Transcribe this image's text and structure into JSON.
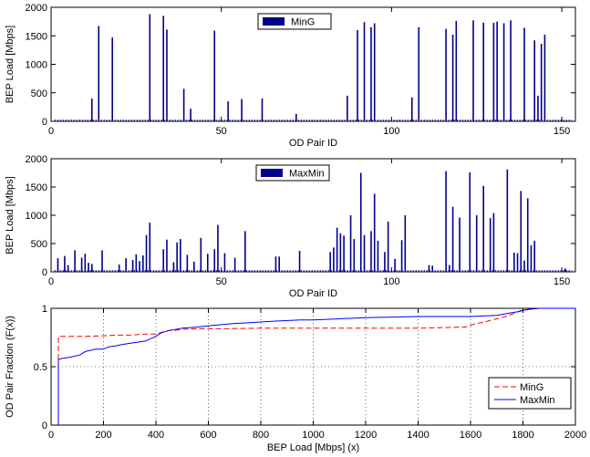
{
  "chart_data": [
    {
      "type": "bar",
      "xlabel": "OD Pair ID",
      "ylabel": "BEP Load [Mbps]",
      "xlim": [
        0,
        154
      ],
      "ylim": [
        0,
        2000
      ],
      "xticks": [
        0,
        50,
        100,
        150
      ],
      "yticks": [
        0,
        500,
        1000,
        1500,
        2000
      ],
      "legend": {
        "position": "top-center",
        "labels": [
          "MinG"
        ]
      },
      "color": "#00008b",
      "series": [
        {
          "name": "MinG",
          "bars": [
            [
              12,
              400
            ],
            [
              14,
              1670
            ],
            [
              18,
              1470
            ],
            [
              29,
              1880
            ],
            [
              33,
              1850
            ],
            [
              34,
              1610
            ],
            [
              39,
              570
            ],
            [
              41,
              220
            ],
            [
              48,
              1590
            ],
            [
              52,
              350
            ],
            [
              56,
              390
            ],
            [
              62,
              400
            ],
            [
              72,
              130
            ],
            [
              87,
              450
            ],
            [
              90,
              1600
            ],
            [
              92,
              1740
            ],
            [
              94,
              1650
            ],
            [
              95,
              1720
            ],
            [
              106,
              420
            ],
            [
              108,
              1650
            ],
            [
              116,
              1620
            ],
            [
              118,
              1520
            ],
            [
              119,
              1760
            ],
            [
              124,
              1770
            ],
            [
              127,
              1730
            ],
            [
              130,
              1730
            ],
            [
              131,
              1750
            ],
            [
              133,
              1720
            ],
            [
              135,
              1770
            ],
            [
              139,
              1640
            ],
            [
              142,
              1420
            ],
            [
              143,
              450
            ],
            [
              144,
              1360
            ],
            [
              145,
              1520
            ]
          ]
        }
      ]
    },
    {
      "type": "bar",
      "xlabel": "OD Pair ID",
      "ylabel": "BEP Load [Mbps]",
      "xlim": [
        0,
        154
      ],
      "ylim": [
        0,
        2000
      ],
      "xticks": [
        0,
        50,
        100,
        150
      ],
      "yticks": [
        0,
        500,
        1000,
        1500,
        2000
      ],
      "legend": {
        "position": "top-center",
        "labels": [
          "MaxMin"
        ]
      },
      "color": "#00008b",
      "series": [
        {
          "name": "MaxMin",
          "bars": [
            [
              2,
              240
            ],
            [
              4,
              280
            ],
            [
              5,
              120
            ],
            [
              7,
              380
            ],
            [
              9,
              250
            ],
            [
              10,
              320
            ],
            [
              11,
              160
            ],
            [
              12,
              140
            ],
            [
              15,
              380
            ],
            [
              20,
              130
            ],
            [
              22,
              240
            ],
            [
              24,
              210
            ],
            [
              25,
              310
            ],
            [
              26,
              190
            ],
            [
              27,
              290
            ],
            [
              28,
              650
            ],
            [
              29,
              870
            ],
            [
              33,
              400
            ],
            [
              34,
              570
            ],
            [
              36,
              170
            ],
            [
              37,
              520
            ],
            [
              38,
              580
            ],
            [
              40,
              300
            ],
            [
              42,
              180
            ],
            [
              44,
              600
            ],
            [
              46,
              320
            ],
            [
              48,
              400
            ],
            [
              49,
              830
            ],
            [
              51,
              330
            ],
            [
              54,
              250
            ],
            [
              57,
              720
            ],
            [
              66,
              270
            ],
            [
              67,
              270
            ],
            [
              73,
              370
            ],
            [
              82,
              350
            ],
            [
              83,
              430
            ],
            [
              84,
              780
            ],
            [
              85,
              680
            ],
            [
              86,
              640
            ],
            [
              88,
              1000
            ],
            [
              89,
              580
            ],
            [
              91,
              1750
            ],
            [
              92,
              650
            ],
            [
              94,
              720
            ],
            [
              95,
              1380
            ],
            [
              96,
              550
            ],
            [
              98,
              350
            ],
            [
              99,
              890
            ],
            [
              101,
              230
            ],
            [
              103,
              560
            ],
            [
              104,
              1000
            ],
            [
              111,
              120
            ],
            [
              112,
              110
            ],
            [
              116,
              1780
            ],
            [
              117,
              120
            ],
            [
              118,
              1150
            ],
            [
              120,
              960
            ],
            [
              123,
              1760
            ],
            [
              125,
              1000
            ],
            [
              127,
              1520
            ],
            [
              129,
              950
            ],
            [
              130,
              1040
            ],
            [
              134,
              1810
            ],
            [
              136,
              340
            ],
            [
              137,
              330
            ],
            [
              138,
              1430
            ],
            [
              139,
              200
            ],
            [
              140,
              1300
            ],
            [
              141,
              470
            ],
            [
              142,
              550
            ],
            [
              151,
              60
            ]
          ]
        }
      ]
    },
    {
      "type": "line",
      "xlabel": "BEP Load [Mbps] (x)",
      "ylabel": "OD Pair Fraction (F(x))",
      "xlim": [
        0,
        2000
      ],
      "ylim": [
        0,
        1
      ],
      "xticks": [
        0,
        200,
        400,
        600,
        800,
        1000,
        1200,
        1400,
        1600,
        1800,
        2000
      ],
      "yticks": [
        0,
        0.5,
        1
      ],
      "grid": true,
      "legend": {
        "position": "bottom-right"
      },
      "series": [
        {
          "name": "MinG",
          "color": "#ff0000",
          "dash": "dashed",
          "x": [
            28,
            28,
            30,
            130,
            200,
            250,
            300,
            360,
            400,
            430,
            450,
            470,
            500,
            560,
            640,
            800,
            1000,
            1200,
            1400,
            1500,
            1580,
            1620,
            1650,
            1680,
            1720,
            1740,
            1760,
            1780,
            1820,
            1860,
            2000
          ],
          "y": [
            0,
            0.75,
            0.76,
            0.76,
            0.765,
            0.77,
            0.77,
            0.78,
            0.78,
            0.8,
            0.81,
            0.81,
            0.82,
            0.825,
            0.825,
            0.83,
            0.83,
            0.83,
            0.83,
            0.835,
            0.84,
            0.87,
            0.88,
            0.9,
            0.92,
            0.935,
            0.95,
            0.97,
            0.99,
            1.0,
            1.0
          ]
        },
        {
          "name": "MaxMin",
          "color": "#0000ff",
          "dash": "solid",
          "x": [
            28,
            28,
            40,
            70,
            110,
            130,
            150,
            170,
            200,
            220,
            250,
            270,
            300,
            330,
            360,
            380,
            400,
            420,
            450,
            500,
            560,
            600,
            650,
            700,
            780,
            850,
            950,
            1000,
            1100,
            1200,
            1400,
            1600,
            1700,
            1750,
            1780,
            1790,
            1820,
            1860,
            2000
          ],
          "y": [
            0,
            0.56,
            0.57,
            0.58,
            0.6,
            0.63,
            0.64,
            0.65,
            0.65,
            0.67,
            0.68,
            0.69,
            0.7,
            0.71,
            0.72,
            0.74,
            0.76,
            0.79,
            0.81,
            0.83,
            0.84,
            0.85,
            0.86,
            0.87,
            0.88,
            0.89,
            0.9,
            0.9,
            0.91,
            0.92,
            0.93,
            0.93,
            0.94,
            0.96,
            0.97,
            0.98,
            0.99,
            1.0,
            1.0
          ]
        }
      ]
    }
  ]
}
